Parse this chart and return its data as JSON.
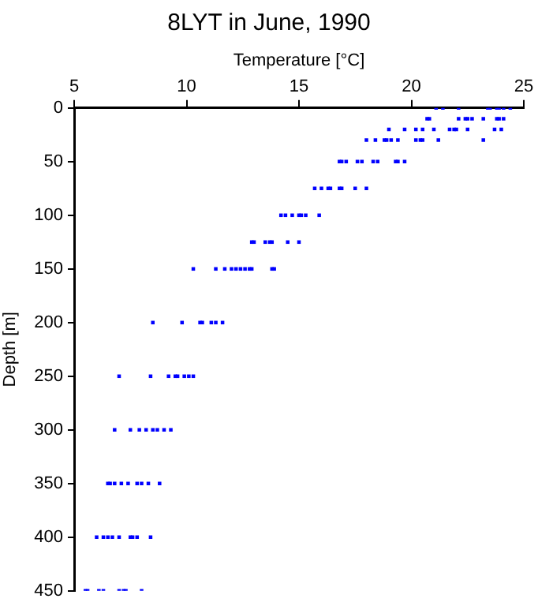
{
  "chart_data": {
    "type": "scatter",
    "title": "8LYT in June, 1990",
    "xlabel": "Temperature [°C]",
    "ylabel": "Depth [m]",
    "xlim": [
      5,
      25
    ],
    "xticks": [
      5,
      10,
      15,
      20,
      25
    ],
    "ylim": [
      450,
      0
    ],
    "yticks": [
      0,
      50,
      100,
      150,
      200,
      250,
      300,
      350,
      400,
      450
    ],
    "grid": false,
    "legend": false,
    "marker": "square",
    "series": [
      {
        "color": "#0000ff",
        "x": [
          21.1,
          21.4,
          22.1,
          23.4,
          23.5,
          23.8,
          23.9,
          24.1,
          24.4,
          20.7,
          20.8,
          22.1,
          22.4,
          22.5,
          22.7,
          23.2,
          23.8,
          23.9,
          24.1,
          19.0,
          19.7,
          20.2,
          20.5,
          21.0,
          21.7,
          21.9,
          22.0,
          22.5,
          23.7,
          24.0,
          18.0,
          18.4,
          18.8,
          18.9,
          19.1,
          19.4,
          20.2,
          20.4,
          20.5,
          21.2,
          23.2,
          16.8,
          16.9,
          17.1,
          17.6,
          17.8,
          18.3,
          18.5,
          19.3,
          19.4,
          19.7,
          15.7,
          16.0,
          16.3,
          16.4,
          16.8,
          16.9,
          17.5,
          18.0,
          14.2,
          14.4,
          14.7,
          15.0,
          15.1,
          15.3,
          15.9,
          12.9,
          13.0,
          13.5,
          13.7,
          13.8,
          14.5,
          15.0,
          10.3,
          11.3,
          11.7,
          12.0,
          12.2,
          12.4,
          12.6,
          12.8,
          12.9,
          13.8,
          13.9,
          8.5,
          9.8,
          10.6,
          10.7,
          11.1,
          11.3,
          11.6,
          7.0,
          8.4,
          9.2,
          9.5,
          9.6,
          9.9,
          10.1,
          10.3,
          6.8,
          7.5,
          7.9,
          8.2,
          8.5,
          8.7,
          9.0,
          9.3,
          6.5,
          6.6,
          6.8,
          7.1,
          7.4,
          7.8,
          8.0,
          8.3,
          8.8,
          6.0,
          6.3,
          6.5,
          6.7,
          7.0,
          7.5,
          7.6,
          7.8,
          8.4,
          5.5,
          5.6,
          6.1,
          6.3,
          7.0,
          7.2,
          7.3,
          8.0
        ],
        "values": [
          0,
          0,
          0,
          0,
          0,
          0,
          0,
          0,
          0,
          10,
          10,
          10,
          10,
          10,
          10,
          10,
          10,
          10,
          10,
          20,
          20,
          20,
          20,
          20,
          20,
          20,
          20,
          20,
          20,
          20,
          30,
          30,
          30,
          30,
          30,
          30,
          30,
          30,
          30,
          30,
          30,
          50,
          50,
          50,
          50,
          50,
          50,
          50,
          50,
          50,
          50,
          75,
          75,
          75,
          75,
          75,
          75,
          75,
          75,
          100,
          100,
          100,
          100,
          100,
          100,
          100,
          125,
          125,
          125,
          125,
          125,
          125,
          125,
          150,
          150,
          150,
          150,
          150,
          150,
          150,
          150,
          150,
          150,
          150,
          200,
          200,
          200,
          200,
          200,
          200,
          200,
          250,
          250,
          250,
          250,
          250,
          250,
          250,
          250,
          300,
          300,
          300,
          300,
          300,
          300,
          300,
          300,
          350,
          350,
          350,
          350,
          350,
          350,
          350,
          350,
          350,
          400,
          400,
          400,
          400,
          400,
          400,
          400,
          400,
          400,
          450,
          450,
          450,
          450,
          450,
          450,
          450,
          450
        ]
      }
    ]
  }
}
